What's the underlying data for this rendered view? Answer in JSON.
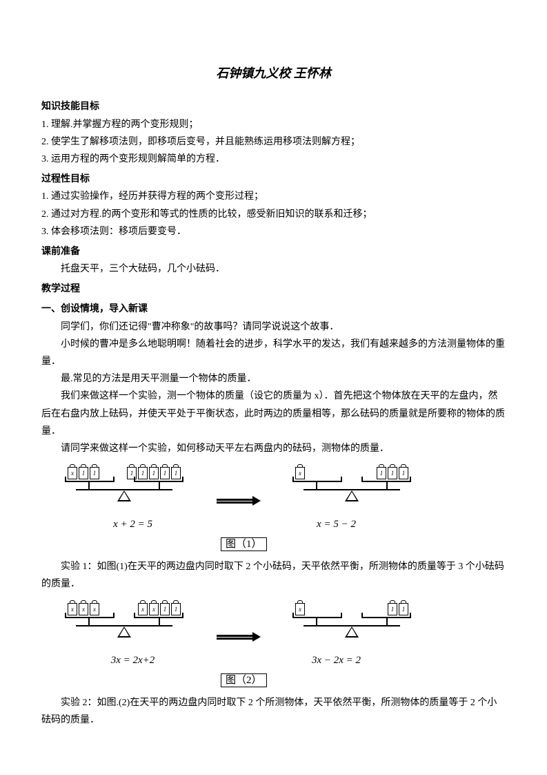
{
  "title": "石钟镇九义校  王怀林",
  "sec1_head": "知识技能目标",
  "sec1_l1": "1. 理解.并掌握方程的两个变形规则；",
  "sec1_l2": "2. 使学生了解移项法则，即移项后变号，并且能熟练运用移项法则解方程；",
  "sec1_l3": "3. 运用方程的两个变形规则解简单的方程．",
  "sec2_head": "过程性目标",
  "sec2_l1": "1. 通过实验操作，经历并获得方程的两个变形过程；",
  "sec2_l2": "2. 通过对方程.的两个变形和等式的性质的比较，感受新旧知识的联系和迁移；",
  "sec2_l3": "3. 体会移项法则：移项后要变号．",
  "sec3_head": "课前准备",
  "sec3_l1": "托盘天平，三个大砝码，几个小砝码．",
  "sec4_head": "教学过程",
  "sec5_head": "一、创设情境，导入新课",
  "p1": "同学们，你们还记得\"曹冲称象\"的故事吗？请同学说说这个故事．",
  "p2": "小时候的曹冲是多么地聪明啊！随着社会的进步，科学水平的发达，我们有越来越多的方法测量物体的重量．",
  "p3": "最.常见的方法是用天平测量一个物体的质量．",
  "p4": "我们来做这样一个实验，测一个物体的质量（设它的质量为 x）．首先把这个物体放在天平的左盘内，然后在右盘内放上砝码，并使天平处于平衡状态，此时两边的质量相等，那么砝码的质量就是所要称的物体的质量．",
  "p5": "请同学来做这样一个实验，如何移动天平左右两盘内的砝码，测物体的质量．",
  "fig1_eq_left": "x + 2 = 5",
  "fig1_eq_right": "x = 5 − 2",
  "fig1_label": "图（1）",
  "exp1": "实验 1：如图(1)在天平的两边盘内同时取下 2 个小砝码，天平依然平衡，所测物体的质量等于 3 个小砝码的质量．",
  "fig2_eq_left": "3x = 2x+2",
  "fig2_eq_right": "3x − 2x = 2",
  "fig2_label": "图（2）",
  "exp2": "实验 2：如图.(2)在天平的两边盘内同时取下 2 个所测物体，天平依然平衡，所测物体的质量等于 2 个小砝码的质量．",
  "wt_x": "x",
  "wt_1": "1"
}
